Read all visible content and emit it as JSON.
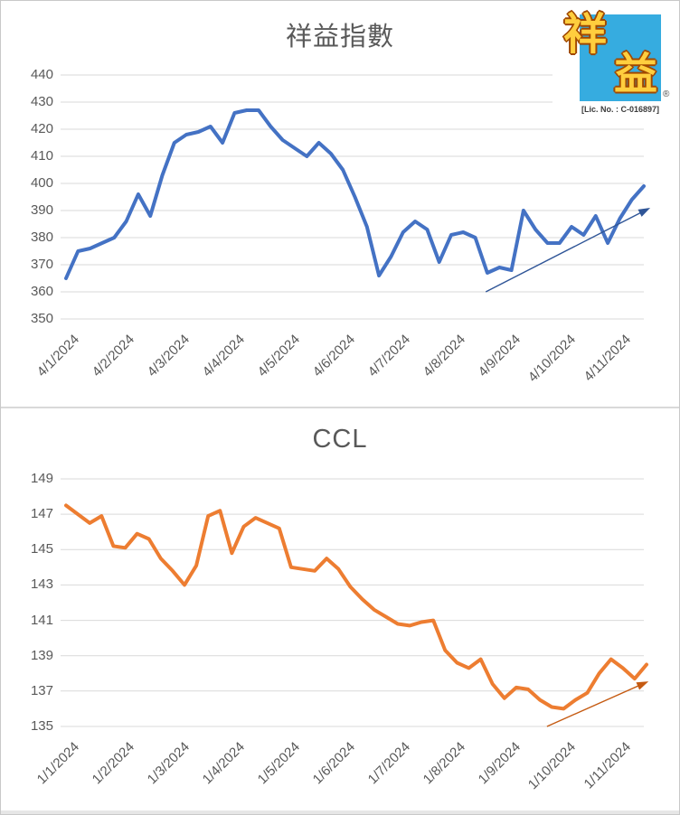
{
  "chart_data": [
    {
      "type": "line",
      "title": "祥益指數",
      "legend": "none",
      "grid": true,
      "x_labels": [
        "4/1/2024",
        "4/2/2024",
        "4/3/2024",
        "4/4/2024",
        "4/5/2024",
        "4/6/2024",
        "4/7/2024",
        "4/8/2024",
        "4/9/2024",
        "4/10/2024",
        "4/11/2024"
      ],
      "y_ticks": [
        440,
        430,
        420,
        410,
        400,
        390,
        380,
        370,
        360,
        350
      ],
      "ylim": [
        350,
        440
      ],
      "values": [
        365,
        375,
        376,
        378,
        380,
        386,
        396,
        388,
        403,
        415,
        418,
        419,
        421,
        415,
        426,
        427,
        427,
        421,
        416,
        413,
        410,
        415,
        411,
        405,
        395,
        384,
        366,
        373,
        382,
        386,
        383,
        371,
        381,
        382,
        380,
        367,
        369,
        368,
        390,
        383,
        378,
        378,
        384,
        381,
        388,
        378,
        387,
        394,
        399
      ],
      "line_color": "#4472C4",
      "trend_arrow": {
        "color": "#2F5597",
        "from": {
          "t": 0.729,
          "v": 360
        },
        "to": {
          "t": 1.011,
          "v": 391
        }
      }
    },
    {
      "type": "line",
      "title": "CCL",
      "legend": "none",
      "grid": true,
      "x_labels": [
        "1/1/2024",
        "1/2/2024",
        "1/3/2024",
        "1/4/2024",
        "1/5/2024",
        "1/6/2024",
        "1/7/2024",
        "1/8/2024",
        "1/9/2024",
        "1/10/2024",
        "1/11/2024"
      ],
      "y_ticks": [
        149,
        147,
        145,
        143,
        141,
        139,
        137,
        135
      ],
      "ylim": [
        135,
        149
      ],
      "values": [
        147.5,
        147.0,
        146.5,
        146.9,
        145.2,
        145.1,
        145.9,
        145.6,
        144.5,
        143.8,
        143.0,
        144.1,
        146.9,
        147.2,
        144.8,
        146.3,
        146.8,
        146.5,
        146.2,
        144.0,
        143.9,
        143.8,
        144.5,
        143.9,
        142.9,
        142.2,
        141.6,
        141.2,
        140.8,
        140.7,
        140.9,
        141.0,
        139.3,
        138.6,
        138.3,
        138.8,
        137.4,
        136.6,
        137.2,
        137.1,
        136.5,
        136.1,
        136.0,
        136.5,
        136.9,
        138.0,
        138.8,
        138.3,
        137.7,
        138.5
      ],
      "line_color": "#ED7D31",
      "trend_arrow": {
        "color": "#C55A11",
        "from": {
          "t": 0.834,
          "v": 135
        },
        "to": {
          "t": 1.008,
          "v": 137.55
        }
      }
    }
  ],
  "logo": {
    "char_top": "祥",
    "char_bottom": "益",
    "registered_mark": "®",
    "license_text": "[Lic. No. : C-016897]",
    "square_color": "#36ACE0",
    "glyph_color": "#FFCE3E",
    "glyph_outline_color": "#A04800"
  },
  "colors": {
    "grid": "#D9D9D9",
    "axis_text": "#595959",
    "panel_border": "#C9C9C9",
    "divider": "#D9D9D9"
  }
}
